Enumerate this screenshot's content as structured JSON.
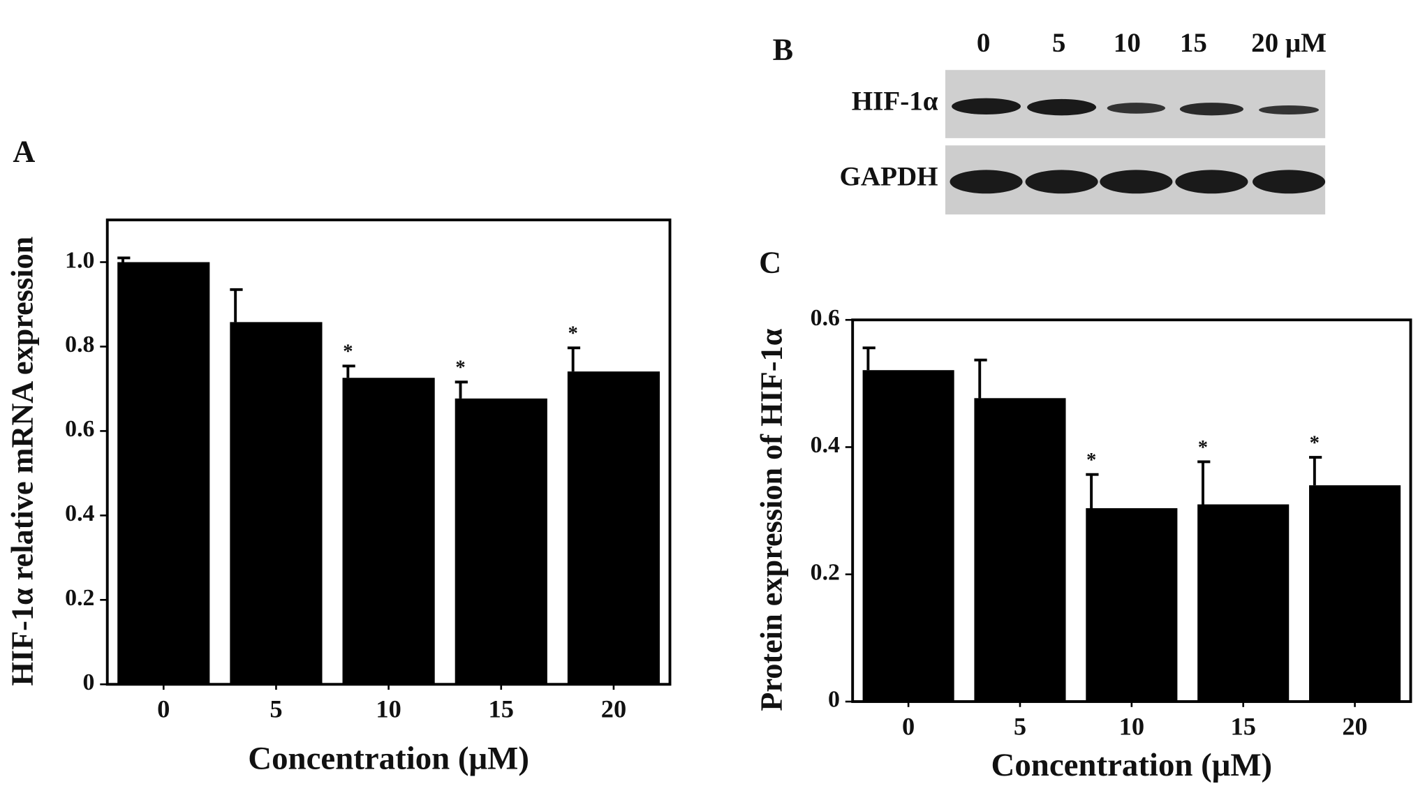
{
  "chart_data": [
    {
      "type": "bar",
      "panel": "A",
      "y_label": "HIF-1α relative mRNA expression",
      "x_label": "Concentration (μM)",
      "categories": [
        "0",
        "5",
        "10",
        "15",
        "20"
      ],
      "values": [
        1.0,
        0.858,
        0.726,
        0.677,
        0.741
      ],
      "errors": [
        0.01,
        0.077,
        0.028,
        0.039,
        0.056
      ],
      "color": "#000000",
      "ylim": [
        0,
        1.1
      ],
      "yticks": [
        0,
        0.2,
        0.4,
        0.6,
        0.8,
        {
          "value": 1,
          "label": "1.0"
        }
      ],
      "annotations": [
        {
          "text": "*",
          "category": "10"
        },
        {
          "text": "*",
          "category": "15"
        },
        {
          "text": "*",
          "category": "20"
        }
      ]
    },
    {
      "type": "bar",
      "panel": "C",
      "y_label": "Protein expression of HIF-1α",
      "x_label": "Concentration (μM)",
      "categories": [
        "0",
        "5",
        "10",
        "15",
        "20"
      ],
      "values": [
        0.521,
        0.477,
        0.304,
        0.31,
        0.34
      ],
      "errors": [
        0.035,
        0.06,
        0.053,
        0.067,
        0.044
      ],
      "color": "#000000",
      "ylim": [
        0,
        0.6
      ],
      "yticks": [
        0,
        0.2,
        0.4,
        0.6
      ],
      "annotations": [
        {
          "text": "*",
          "category": "10"
        },
        {
          "text": "*",
          "category": "15"
        },
        {
          "text": "*",
          "category": "20"
        }
      ]
    }
  ],
  "blot": {
    "panel": "B",
    "lanes": [
      "0",
      "5",
      "10",
      "15",
      "20 μM"
    ],
    "rows": [
      "HIF-1α",
      "GAPDH"
    ]
  }
}
